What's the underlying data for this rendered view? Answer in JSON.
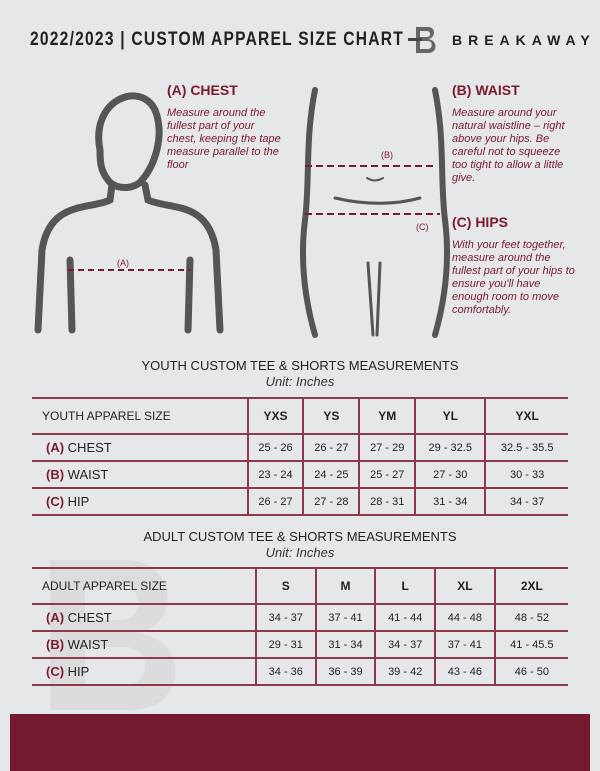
{
  "header": {
    "title": "2022/2023 | CUSTOM APPAREL SIZE CHART",
    "brand": "BREAKAWAY"
  },
  "colors": {
    "accent": "#7a1a2e",
    "background": "#e6e7e8"
  },
  "measures": {
    "chest": {
      "heading": "(A) CHEST",
      "text": "Measure around the fullest part of your chest, keeping the tape measure parallel to the floor",
      "marker": "(A)"
    },
    "waist": {
      "heading": "(B) WAIST",
      "text": "Measure around your natural waistline – right above your hips. Be careful not to squeeze too tight to allow a little give.",
      "marker": "(B)"
    },
    "hips": {
      "heading": "(C) HIPS",
      "text": "With your feet together, measure around the fullest part of your hips to ensure you'll have enough room to move comfortably.",
      "marker": "(C)"
    }
  },
  "youth": {
    "title": "YOUTH CUSTOM TEE & SHORTS MEASUREMENTS",
    "unit": "Unit: Inches",
    "header": [
      "YOUTH APPAREL SIZE",
      "YXS",
      "YS",
      "YM",
      "YL",
      "YXL"
    ],
    "rows": [
      {
        "code": "(A)",
        "name": "CHEST",
        "values": [
          "25 - 26",
          "26 - 27",
          "27 - 29",
          "29 - 32.5",
          "32.5 - 35.5"
        ]
      },
      {
        "code": "(B)",
        "name": "WAIST",
        "values": [
          "23 - 24",
          "24 - 25",
          "25 - 27",
          "27 - 30",
          "30 - 33"
        ]
      },
      {
        "code": "(C)",
        "name": "HIP",
        "values": [
          "26 - 27",
          "27 - 28",
          "28 - 31",
          "31 - 34",
          "34 - 37"
        ]
      }
    ]
  },
  "adult": {
    "title": "ADULT CUSTOM TEE & SHORTS MEASUREMENTS",
    "unit": "Unit: Inches",
    "header": [
      "ADULT APPAREL SIZE",
      "S",
      "M",
      "L",
      "XL",
      "2XL"
    ],
    "rows": [
      {
        "code": "(A)",
        "name": "CHEST",
        "values": [
          "34 - 37",
          "37 - 41",
          "41 - 44",
          "44 - 48",
          "48 - 52"
        ]
      },
      {
        "code": "(B)",
        "name": "WAIST",
        "values": [
          "29 - 31",
          "31 - 34",
          "34 - 37",
          "37 - 41",
          "41 - 45.5"
        ]
      },
      {
        "code": "(C)",
        "name": "HIP",
        "values": [
          "34 - 36",
          "36 - 39",
          "39 - 42",
          "43 - 46",
          "46 - 50"
        ]
      }
    ]
  }
}
